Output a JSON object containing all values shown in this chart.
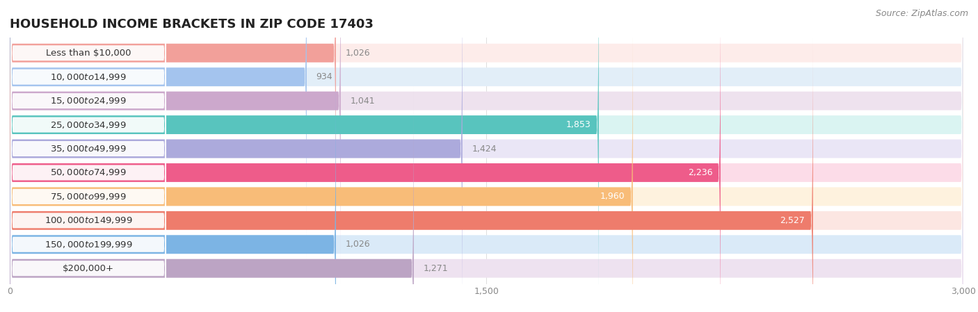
{
  "title": "Household Income Brackets in Zip Code 17403",
  "title_display": "HOUSEHOLD INCOME BRACKETS IN ZIP CODE 17403",
  "source": "Source: ZipAtlas.com",
  "categories": [
    "Less than $10,000",
    "$10,000 to $14,999",
    "$15,000 to $24,999",
    "$25,000 to $34,999",
    "$35,000 to $49,999",
    "$50,000 to $74,999",
    "$75,000 to $99,999",
    "$100,000 to $149,999",
    "$150,000 to $199,999",
    "$200,000+"
  ],
  "values": [
    1026,
    934,
    1041,
    1853,
    1424,
    2236,
    1960,
    2527,
    1026,
    1271
  ],
  "bar_colors": [
    "#F2A09A",
    "#A4C4EE",
    "#CCA8CC",
    "#58C4BE",
    "#ACAADC",
    "#EE5C8A",
    "#F8BC78",
    "#EE7C6C",
    "#7CB4E4",
    "#BCA4C4"
  ],
  "bar_bg_colors": [
    "#FDECEA",
    "#E2EEF8",
    "#EEE2EE",
    "#DAF4F2",
    "#EAE6F6",
    "#FCDCE8",
    "#FEF2DE",
    "#FCE6E2",
    "#DAEAF8",
    "#EEE2F0"
  ],
  "xlim": [
    0,
    3000
  ],
  "xticks": [
    0,
    1500,
    3000
  ],
  "background_color": "#ffffff",
  "title_fontsize": 13,
  "label_fontsize": 9.5,
  "value_fontsize": 9,
  "source_fontsize": 9,
  "bar_height": 0.78,
  "value_inside_threshold": 1500
}
